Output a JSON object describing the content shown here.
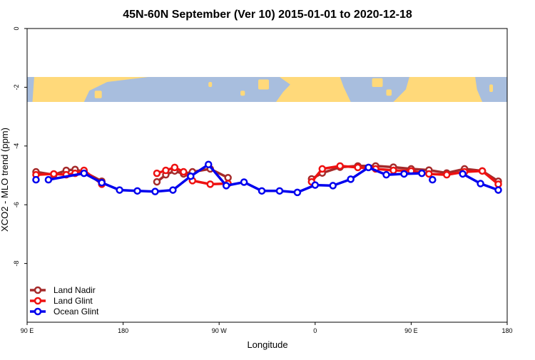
{
  "chart_data": {
    "type": "line",
    "title": "45N-60N September (Ver 10)   2015-01-01 to 2020-12-18",
    "xlabel": "Longitude",
    "ylabel": "XCO2 - MLO trend (ppm)",
    "xlim": [
      -90,
      180
    ],
    "ylim": [
      -10,
      0
    ],
    "x_ticks": [
      {
        "value": -90,
        "label": "90 E"
      },
      {
        "value": -36,
        "label": "180"
      },
      {
        "value": 18,
        "label": "90 W"
      },
      {
        "value": 72,
        "label": "0"
      },
      {
        "value": 126,
        "label": "90 E"
      },
      {
        "value": 180,
        "label": "180"
      }
    ],
    "y_ticks": [
      {
        "value": 0,
        "label": "0"
      },
      {
        "value": -2,
        "label": "-2"
      },
      {
        "value": -4,
        "label": "-4"
      },
      {
        "value": -6,
        "label": "-6"
      },
      {
        "value": -8,
        "label": "-8"
      }
    ],
    "grid": false,
    "legend_position": "bottom-left",
    "map_band": {
      "y_range": [
        -1.65,
        -2.5
      ],
      "land_color": "#ffd97a",
      "ocean_color": "#a8bede"
    },
    "series": [
      {
        "name": "Land Nadir",
        "color": "#a52a2a",
        "segments": [
          [
            [
              -85,
              -4.88
            ],
            [
              -75,
              -4.98
            ],
            [
              -68,
              -4.83
            ],
            [
              -63,
              -4.8
            ],
            [
              -58,
              -4.88
            ],
            [
              -48,
              -5.2
            ]
          ],
          [
            [
              -17,
              -5.22
            ],
            [
              -12,
              -4.98
            ],
            [
              -7,
              -4.85
            ],
            [
              -2,
              -4.95
            ],
            [
              3,
              -4.88
            ],
            [
              13,
              -4.78
            ],
            [
              23,
              -5.08
            ]
          ],
          [
            [
              70,
              -5.12
            ],
            [
              76,
              -4.92
            ],
            [
              86,
              -4.72
            ],
            [
              96,
              -4.68
            ],
            [
              106,
              -4.68
            ],
            [
              116,
              -4.72
            ],
            [
              126,
              -4.78
            ],
            [
              136,
              -4.82
            ],
            [
              146,
              -4.92
            ],
            [
              156,
              -4.78
            ],
            [
              166,
              -4.85
            ],
            [
              175,
              -5.2
            ]
          ]
        ]
      },
      {
        "name": "Land Glint",
        "color": "#ee1111",
        "segments": [
          [
            [
              -85,
              -4.98
            ],
            [
              -75,
              -4.95
            ],
            [
              -68,
              -4.98
            ],
            [
              -63,
              -4.93
            ],
            [
              -58,
              -4.83
            ],
            [
              -48,
              -5.3
            ]
          ],
          [
            [
              -17,
              -4.93
            ],
            [
              -12,
              -4.83
            ],
            [
              -7,
              -4.73
            ],
            [
              -2,
              -4.88
            ],
            [
              3,
              -5.18
            ],
            [
              13,
              -5.3
            ],
            [
              23,
              -5.28
            ]
          ],
          [
            [
              70,
              -5.22
            ],
            [
              76,
              -4.78
            ],
            [
              86,
              -4.68
            ],
            [
              96,
              -4.73
            ],
            [
              106,
              -4.78
            ],
            [
              116,
              -4.83
            ],
            [
              126,
              -4.85
            ],
            [
              136,
              -4.95
            ],
            [
              146,
              -4.98
            ],
            [
              156,
              -4.88
            ],
            [
              166,
              -4.85
            ],
            [
              175,
              -5.3
            ]
          ]
        ]
      },
      {
        "name": "Ocean Glint",
        "color": "#0000ee",
        "segments": [
          [
            [
              -78,
              -5.15
            ],
            [
              -58,
              -4.93
            ],
            [
              -48,
              -5.25
            ],
            [
              -38,
              -5.5
            ],
            [
              -28,
              -5.53
            ],
            [
              -18,
              -5.55
            ],
            [
              -8,
              -5.5
            ],
            [
              2,
              -5.03
            ],
            [
              12,
              -4.63
            ],
            [
              22,
              -5.35
            ],
            [
              32,
              -5.23
            ],
            [
              42,
              -5.53
            ],
            [
              52,
              -5.53
            ],
            [
              62,
              -5.58
            ],
            [
              72,
              -5.33
            ],
            [
              82,
              -5.35
            ],
            [
              92,
              -5.13
            ],
            [
              102,
              -4.73
            ],
            [
              112,
              -4.98
            ],
            [
              122,
              -4.95
            ],
            [
              132,
              -4.93
            ]
          ],
          [
            [
              155,
              -4.95
            ],
            [
              165,
              -5.28
            ],
            [
              175,
              -5.5
            ]
          ]
        ],
        "points": [
          [
            -85,
            -5.15
          ],
          [
            -78,
            -5.15
          ],
          [
            -58,
            -4.93
          ],
          [
            -48,
            -5.25
          ],
          [
            -38,
            -5.5
          ],
          [
            -28,
            -5.53
          ],
          [
            -18,
            -5.55
          ],
          [
            -8,
            -5.5
          ],
          [
            2,
            -5.03
          ],
          [
            12,
            -4.63
          ],
          [
            22,
            -5.35
          ],
          [
            32,
            -5.23
          ],
          [
            42,
            -5.53
          ],
          [
            52,
            -5.53
          ],
          [
            62,
            -5.58
          ],
          [
            72,
            -5.33
          ],
          [
            82,
            -5.35
          ],
          [
            92,
            -5.13
          ],
          [
            102,
            -4.73
          ],
          [
            112,
            -4.98
          ],
          [
            122,
            -4.95
          ],
          [
            132,
            -4.93
          ],
          [
            138,
            -5.15
          ],
          [
            155,
            -4.95
          ],
          [
            165,
            -5.28
          ],
          [
            175,
            -5.5
          ]
        ]
      }
    ]
  }
}
